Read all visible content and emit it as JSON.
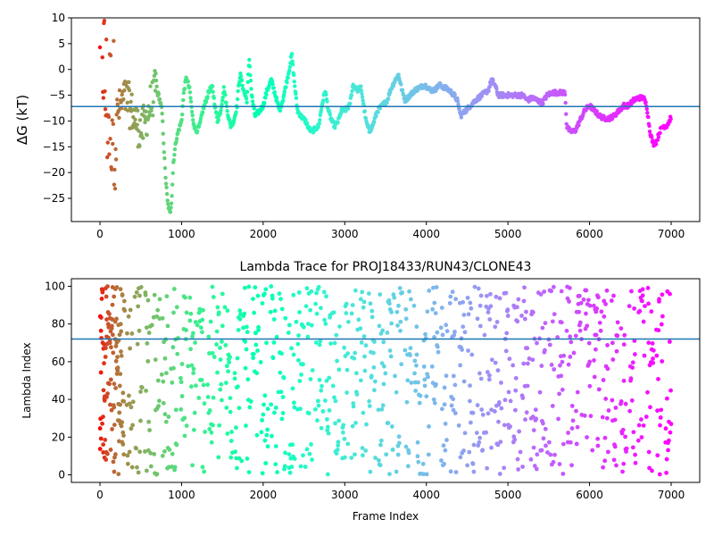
{
  "chart_data": [
    {
      "type": "scatter",
      "title": "",
      "xlabel": "",
      "ylabel": "ΔG (kT)",
      "xlim": [
        -350,
        7350
      ],
      "ylim": [
        -29.5,
        10
      ],
      "xticks": [
        0,
        1000,
        2000,
        3000,
        4000,
        5000,
        6000,
        7000
      ],
      "yticks": [
        -25,
        -20,
        -15,
        -10,
        -5,
        0,
        5,
        10
      ],
      "reference_line": -7.2,
      "reference_color": "#1f77b4",
      "colormap": "rainbow",
      "grid": false,
      "legend": "none",
      "series_trace": [
        [
          0,
          10
        ],
        [
          20,
          9.5
        ],
        [
          30,
          7
        ],
        [
          40,
          3
        ],
        [
          50,
          0
        ],
        [
          60,
          -3
        ],
        [
          80,
          -6
        ],
        [
          100,
          -9
        ],
        [
          150,
          -7
        ],
        [
          200,
          -9
        ],
        [
          260,
          -7
        ],
        [
          320,
          -5
        ],
        [
          380,
          -8
        ],
        [
          440,
          -10
        ],
        [
          500,
          -12
        ],
        [
          560,
          -10
        ],
        [
          620,
          -7
        ],
        [
          680,
          -4
        ],
        [
          720,
          -5
        ],
        [
          760,
          -8
        ],
        [
          800,
          -20
        ],
        [
          830,
          -26
        ],
        [
          860,
          -28
        ],
        [
          880,
          -25
        ],
        [
          900,
          -18
        ],
        [
          930,
          -14
        ],
        [
          960,
          -12
        ],
        [
          1000,
          -10
        ],
        [
          1030,
          -4
        ],
        [
          1060,
          -1.5
        ],
        [
          1100,
          -4
        ],
        [
          1140,
          -10
        ],
        [
          1180,
          -12
        ],
        [
          1220,
          -11
        ],
        [
          1260,
          -8
        ],
        [
          1300,
          -6
        ],
        [
          1340,
          -4
        ],
        [
          1380,
          -3.5
        ],
        [
          1400,
          -6
        ],
        [
          1440,
          -10
        ],
        [
          1480,
          -8
        ],
        [
          1520,
          -3.5
        ],
        [
          1560,
          -8
        ],
        [
          1600,
          -11
        ],
        [
          1640,
          -10
        ],
        [
          1680,
          -7
        ],
        [
          1700,
          -3
        ],
        [
          1720,
          -1
        ],
        [
          1760,
          -4
        ],
        [
          1800,
          -6
        ],
        [
          1830,
          2
        ],
        [
          1860,
          -5
        ],
        [
          1900,
          -9
        ],
        [
          1960,
          -8
        ],
        [
          2000,
          -7
        ],
        [
          2050,
          -4
        ],
        [
          2100,
          -2
        ],
        [
          2150,
          -5
        ],
        [
          2200,
          -8
        ],
        [
          2240,
          -6
        ],
        [
          2280,
          -3
        ],
        [
          2320,
          0
        ],
        [
          2350,
          3
        ],
        [
          2380,
          -2
        ],
        [
          2420,
          -8
        ],
        [
          2460,
          -9
        ],
        [
          2520,
          -10
        ],
        [
          2560,
          -11.5
        ],
        [
          2600,
          -12
        ],
        [
          2680,
          -11
        ],
        [
          2720,
          -7
        ],
        [
          2760,
          -4
        ],
        [
          2800,
          -8
        ],
        [
          2840,
          -10
        ],
        [
          2880,
          -11
        ],
        [
          2920,
          -10
        ],
        [
          2960,
          -8
        ],
        [
          3000,
          -8
        ],
        [
          3060,
          -7
        ],
        [
          3100,
          -3
        ],
        [
          3160,
          -4
        ],
        [
          3200,
          -3.5
        ],
        [
          3260,
          -10
        ],
        [
          3300,
          -12
        ],
        [
          3340,
          -11
        ],
        [
          3400,
          -8
        ],
        [
          3460,
          -7
        ],
        [
          3520,
          -6
        ],
        [
          3560,
          -4
        ],
        [
          3620,
          -2
        ],
        [
          3660,
          -1
        ],
        [
          3700,
          -4
        ],
        [
          3740,
          -6
        ],
        [
          3800,
          -5
        ],
        [
          3860,
          -4
        ],
        [
          3920,
          -3.5
        ],
        [
          3980,
          -3
        ],
        [
          4050,
          -4
        ],
        [
          4100,
          -4
        ],
        [
          4160,
          -3
        ],
        [
          4220,
          -3.5
        ],
        [
          4280,
          -4
        ],
        [
          4340,
          -5
        ],
        [
          4380,
          -6
        ],
        [
          4420,
          -9
        ],
        [
          4480,
          -8
        ],
        [
          4540,
          -7
        ],
        [
          4600,
          -6
        ],
        [
          4680,
          -5
        ],
        [
          4760,
          -4
        ],
        [
          4800,
          -2
        ],
        [
          4840,
          -3
        ],
        [
          4880,
          -5
        ],
        [
          4940,
          -5
        ],
        [
          5000,
          -5
        ],
        [
          5060,
          -5
        ],
        [
          5120,
          -5
        ],
        [
          5180,
          -5
        ],
        [
          5240,
          -6
        ],
        [
          5300,
          -5.5
        ],
        [
          5360,
          -6
        ],
        [
          5420,
          -6.5
        ],
        [
          5480,
          -5
        ],
        [
          5540,
          -4.5
        ],
        [
          5600,
          -4.5
        ],
        [
          5660,
          -4.5
        ],
        [
          5700,
          -4.5
        ],
        [
          5720,
          -11
        ],
        [
          5760,
          -12
        ],
        [
          5820,
          -12
        ],
        [
          5880,
          -10
        ],
        [
          5940,
          -8
        ],
        [
          6000,
          -7
        ],
        [
          6060,
          -8
        ],
        [
          6120,
          -9
        ],
        [
          6180,
          -9.5
        ],
        [
          6240,
          -9.5
        ],
        [
          6300,
          -9
        ],
        [
          6360,
          -8
        ],
        [
          6420,
          -7
        ],
        [
          6480,
          -7
        ],
        [
          6540,
          -6
        ],
        [
          6600,
          -5.5
        ],
        [
          6660,
          -5.5
        ],
        [
          6700,
          -7
        ],
        [
          6740,
          -12
        ],
        [
          6780,
          -14.5
        ],
        [
          6820,
          -14
        ],
        [
          6860,
          -12
        ],
        [
          6900,
          -11
        ],
        [
          6940,
          -11
        ],
        [
          6980,
          -10
        ],
        [
          7000,
          -9
        ]
      ]
    },
    {
      "type": "scatter",
      "title": "Lambda Trace for PROJ18433/RUN43/CLONE43",
      "xlabel": "Frame Index",
      "ylabel": "Lambda Index",
      "xlim": [
        -350,
        7350
      ],
      "ylim": [
        -4,
        104
      ],
      "xticks": [
        0,
        1000,
        2000,
        3000,
        4000,
        5000,
        6000,
        7000
      ],
      "yticks": [
        0,
        20,
        40,
        60,
        80,
        100
      ],
      "reference_line": 72,
      "reference_color": "#1f77b4",
      "colormap": "rainbow",
      "grid": false,
      "legend": "none",
      "point_count": 4200
    }
  ]
}
